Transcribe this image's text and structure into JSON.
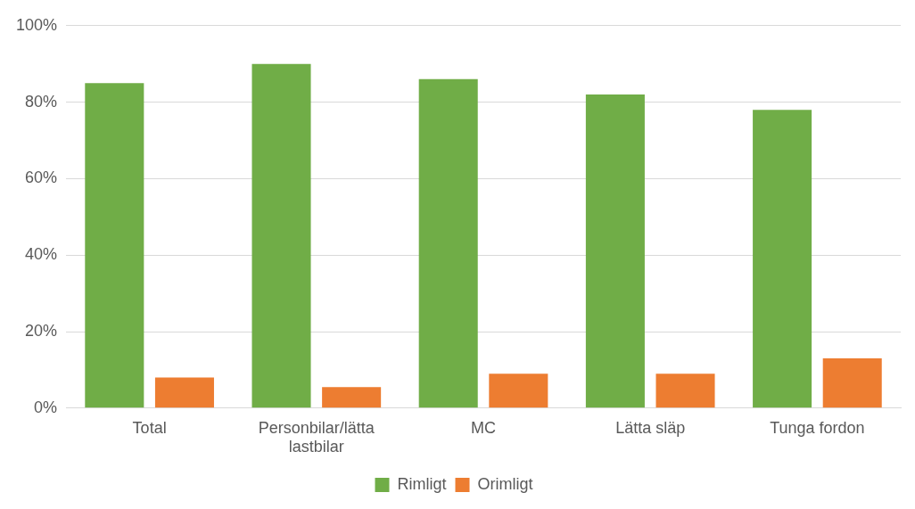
{
  "chart_data": {
    "type": "bar",
    "categories": [
      "Total",
      "Personbilar/lätta lastbilar",
      "MC",
      "Lätta släp",
      "Tunga fordon"
    ],
    "series": [
      {
        "name": "Rimligt",
        "color": "#70ad47",
        "values": [
          85,
          90,
          86,
          82,
          78
        ]
      },
      {
        "name": "Orimligt",
        "color": "#ed7d31",
        "values": [
          8,
          5.5,
          9,
          9,
          13
        ]
      }
    ],
    "ylim": [
      0,
      100
    ],
    "yticks": [
      {
        "value": 0,
        "label": "0%"
      },
      {
        "value": 20,
        "label": "20%"
      },
      {
        "value": 40,
        "label": "40%"
      },
      {
        "value": 60,
        "label": "60%"
      },
      {
        "value": 80,
        "label": "80%"
      },
      {
        "value": 100,
        "label": "100%"
      }
    ],
    "grid": "y",
    "legend": "bottom"
  }
}
